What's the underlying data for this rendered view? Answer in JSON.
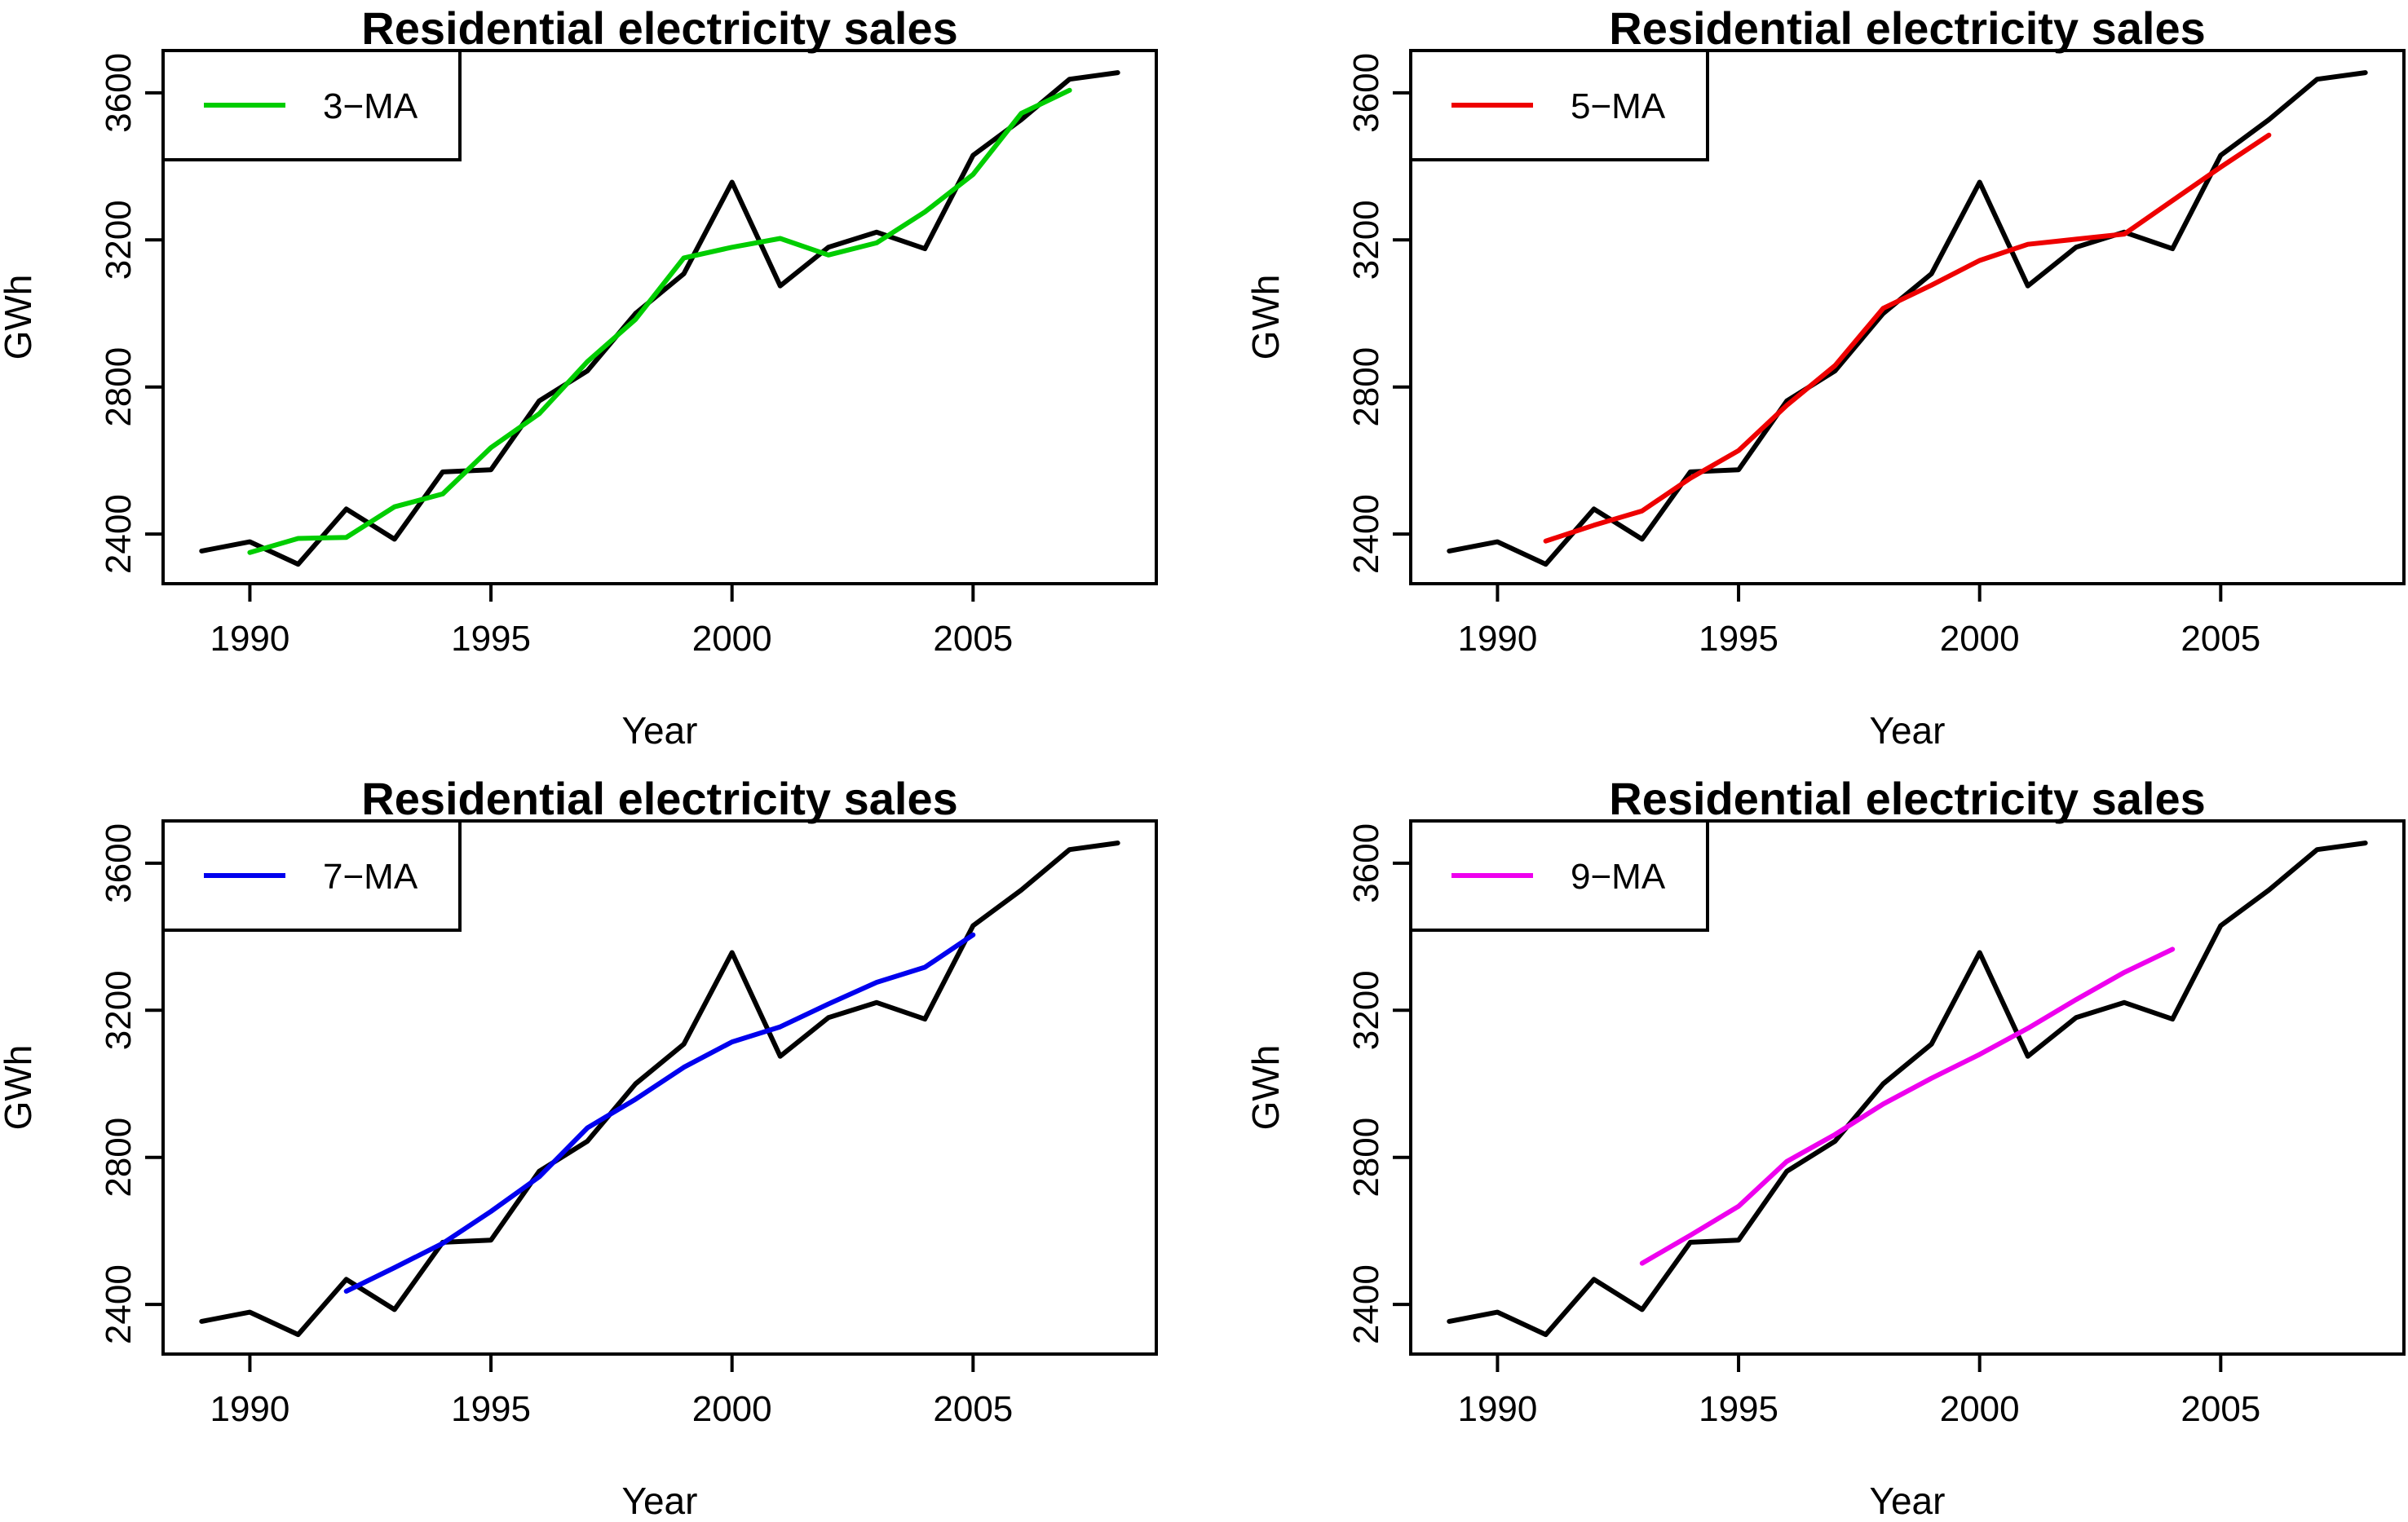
{
  "chart_data": [
    {
      "type": "line",
      "title": "Residential electricity sales",
      "xlabel": "Year",
      "ylabel": "GWh",
      "xlim": [
        1988.2,
        2008.8
      ],
      "ylim": [
        2265,
        3715
      ],
      "xticks": [
        1990,
        1995,
        2000,
        2005
      ],
      "yticks": [
        2400,
        2800,
        3200,
        3600
      ],
      "legend_position": "top-left",
      "series": [
        {
          "color": "#000000",
          "x": [
            1989,
            1990,
            1991,
            1992,
            1993,
            1994,
            1995,
            1996,
            1997,
            1998,
            1999,
            2000,
            2001,
            2002,
            2003,
            2004,
            2005,
            2006,
            2007,
            2008
          ],
          "values": [
            2354,
            2379,
            2318,
            2468,
            2386,
            2569,
            2575,
            2762,
            2844,
            3000,
            3108,
            3357,
            3075,
            3180,
            3221,
            3176,
            3430,
            3527,
            3637,
            3655
          ]
        },
        {
          "name": "3−MA",
          "color": "#00cd00",
          "x": [
            1990,
            1991,
            1992,
            1993,
            1994,
            1995,
            1996,
            1997,
            1998,
            1999,
            2000,
            2001,
            2002,
            2003,
            2004,
            2005,
            2006,
            2007
          ],
          "values": [
            2350,
            2388,
            2391,
            2474,
            2509,
            2635,
            2727,
            2869,
            2984,
            3151,
            3180,
            3204,
            3159,
            3192,
            3276,
            3378,
            3544,
            3607
          ]
        }
      ]
    },
    {
      "type": "line",
      "title": "Residential electricity sales",
      "xlabel": "Year",
      "ylabel": "GWh",
      "xlim": [
        1988.2,
        2008.8
      ],
      "ylim": [
        2265,
        3715
      ],
      "xticks": [
        1990,
        1995,
        2000,
        2005
      ],
      "yticks": [
        2400,
        2800,
        3200,
        3600
      ],
      "legend_position": "top-left",
      "series": [
        {
          "color": "#000000",
          "x": [
            1989,
            1990,
            1991,
            1992,
            1993,
            1994,
            1995,
            1996,
            1997,
            1998,
            1999,
            2000,
            2001,
            2002,
            2003,
            2004,
            2005,
            2006,
            2007,
            2008
          ],
          "values": [
            2354,
            2379,
            2318,
            2468,
            2386,
            2569,
            2575,
            2762,
            2844,
            3000,
            3108,
            3357,
            3075,
            3180,
            3221,
            3176,
            3430,
            3527,
            3637,
            3655
          ]
        },
        {
          "name": "5−MA",
          "color": "#ee0000",
          "x": [
            1991,
            1992,
            1993,
            1994,
            1995,
            1996,
            1997,
            1998,
            1999,
            2000,
            2001,
            2002,
            2003,
            2004,
            2005,
            2006
          ],
          "values": [
            2381,
            2424,
            2463,
            2552,
            2627,
            2750,
            2858,
            3014,
            3077,
            3144,
            3188,
            3202,
            3216,
            3307,
            3398,
            3485
          ]
        }
      ]
    },
    {
      "type": "line",
      "title": "Residential electricity sales",
      "xlabel": "Year",
      "ylabel": "GWh",
      "xlim": [
        1988.2,
        2008.8
      ],
      "ylim": [
        2265,
        3715
      ],
      "xticks": [
        1990,
        1995,
        2000,
        2005
      ],
      "yticks": [
        2400,
        2800,
        3200,
        3600
      ],
      "legend_position": "top-left",
      "series": [
        {
          "color": "#000000",
          "x": [
            1989,
            1990,
            1991,
            1992,
            1993,
            1994,
            1995,
            1996,
            1997,
            1998,
            1999,
            2000,
            2001,
            2002,
            2003,
            2004,
            2005,
            2006,
            2007,
            2008
          ],
          "values": [
            2354,
            2379,
            2318,
            2468,
            2386,
            2569,
            2575,
            2762,
            2844,
            3000,
            3108,
            3357,
            3075,
            3180,
            3221,
            3176,
            3430,
            3527,
            3637,
            3655
          ]
        },
        {
          "name": "7−MA",
          "color": "#0000ee",
          "x": [
            1992,
            1993,
            1994,
            1995,
            1996,
            1997,
            1998,
            1999,
            2000,
            2001,
            2002,
            2003,
            2004,
            2005
          ],
          "values": [
            2436,
            2500,
            2566,
            2653,
            2747,
            2880,
            2958,
            3045,
            3114,
            3155,
            3217,
            3276,
            3317,
            3405
          ]
        }
      ]
    },
    {
      "type": "line",
      "title": "Residential electricity sales",
      "xlabel": "Year",
      "ylabel": "GWh",
      "xlim": [
        1988.2,
        2008.8
      ],
      "ylim": [
        2265,
        3715
      ],
      "xticks": [
        1990,
        1995,
        2000,
        2005
      ],
      "yticks": [
        2400,
        2800,
        3200,
        3600
      ],
      "legend_position": "top-left",
      "series": [
        {
          "color": "#000000",
          "x": [
            1989,
            1990,
            1991,
            1992,
            1993,
            1994,
            1995,
            1996,
            1997,
            1998,
            1999,
            2000,
            2001,
            2002,
            2003,
            2004,
            2005,
            2006,
            2007,
            2008
          ],
          "values": [
            2354,
            2379,
            2318,
            2468,
            2386,
            2569,
            2575,
            2762,
            2844,
            3000,
            3108,
            3357,
            3075,
            3180,
            3221,
            3176,
            3430,
            3527,
            3637,
            3655
          ]
        },
        {
          "name": "9−MA",
          "color": "#ee00ee",
          "x": [
            1993,
            1994,
            1995,
            1996,
            1997,
            1998,
            1999,
            2000,
            2001,
            2002,
            2003,
            2004
          ],
          "values": [
            2512,
            2588,
            2667,
            2789,
            2862,
            2945,
            3015,
            3080,
            3151,
            3229,
            3303,
            3366
          ]
        }
      ]
    }
  ]
}
